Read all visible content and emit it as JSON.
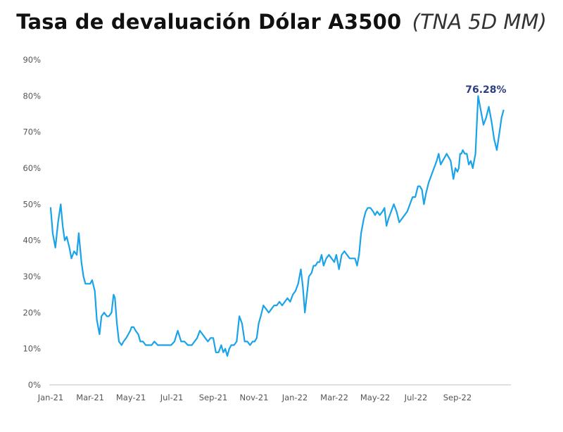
{
  "title": {
    "main": "Tasa de devaluación Dólar A3500",
    "sub": "(TNA 5D MM)"
  },
  "colors": {
    "line": "#1aa3e8",
    "annotation": "#2e3f7f",
    "axis": "#bfbfbf",
    "text": "#555555"
  },
  "chart_data": {
    "type": "line",
    "title": "Tasa de devaluación Dólar A3500 (TNA 5D MM)",
    "xlabel": "",
    "ylabel": "",
    "y_unit": "%",
    "ylim": [
      0,
      90
    ],
    "y_ticks": [
      0,
      10,
      20,
      30,
      40,
      50,
      60,
      70,
      80,
      90
    ],
    "y_tick_labels": [
      "0%",
      "10%",
      "20%",
      "30%",
      "40%",
      "50%",
      "60%",
      "70%",
      "80%",
      "90%"
    ],
    "xlim": [
      "2021-01-01",
      "2022-11-20"
    ],
    "x_ticks": [
      "2021-01-01",
      "2021-03-01",
      "2021-05-01",
      "2021-07-01",
      "2021-09-01",
      "2021-11-01",
      "2022-01-01",
      "2022-03-01",
      "2022-05-01",
      "2022-07-01",
      "2022-09-01"
    ],
    "x_tick_labels": [
      "Jan-21",
      "Mar-21",
      "May-21",
      "Jul-21",
      "Sep-21",
      "Nov-21",
      "Jan-22",
      "Mar-22",
      "May-22",
      "Jul-22",
      "Sep-22"
    ],
    "grid": false,
    "legend": "none",
    "series": [
      {
        "x": [
          "2021-01-01",
          "2021-01-04",
          "2021-01-08",
          "2021-01-12",
          "2021-01-16",
          "2021-01-19",
          "2021-01-22",
          "2021-01-25",
          "2021-01-29",
          "2021-02-01",
          "2021-02-05",
          "2021-02-09",
          "2021-02-12",
          "2021-02-16",
          "2021-02-19",
          "2021-02-22",
          "2021-02-25",
          "2021-03-01",
          "2021-03-04",
          "2021-03-08",
          "2021-03-11",
          "2021-03-15",
          "2021-03-18",
          "2021-03-22",
          "2021-03-26",
          "2021-03-29",
          "2021-04-02",
          "2021-04-05",
          "2021-04-07",
          "2021-04-10",
          "2021-04-13",
          "2021-04-17",
          "2021-04-20",
          "2021-04-24",
          "2021-04-27",
          "2021-04-30",
          "2021-05-02",
          "2021-05-05",
          "2021-05-08",
          "2021-05-12",
          "2021-05-15",
          "2021-05-19",
          "2021-05-23",
          "2021-05-27",
          "2021-06-01",
          "2021-06-05",
          "2021-06-10",
          "2021-06-15",
          "2021-06-20",
          "2021-06-25",
          "2021-06-30",
          "2021-07-05",
          "2021-07-10",
          "2021-07-15",
          "2021-07-20",
          "2021-07-25",
          "2021-07-28",
          "2021-07-31",
          "2021-08-04",
          "2021-08-08",
          "2021-08-12",
          "2021-08-16",
          "2021-08-20",
          "2021-08-24",
          "2021-08-28",
          "2021-09-01",
          "2021-09-05",
          "2021-09-09",
          "2021-09-13",
          "2021-09-16",
          "2021-09-19",
          "2021-09-22",
          "2021-09-25",
          "2021-09-28",
          "2021-10-02",
          "2021-10-06",
          "2021-10-10",
          "2021-10-14",
          "2021-10-18",
          "2021-10-22",
          "2021-10-26",
          "2021-10-30",
          "2021-11-02",
          "2021-11-05",
          "2021-11-08",
          "2021-11-11",
          "2021-11-15",
          "2021-11-19",
          "2021-11-23",
          "2021-11-27",
          "2021-12-01",
          "2021-12-05",
          "2021-12-09",
          "2021-12-13",
          "2021-12-17",
          "2021-12-21",
          "2021-12-25",
          "2021-12-29",
          "2022-01-02",
          "2022-01-06",
          "2022-01-10",
          "2022-01-13",
          "2022-01-16",
          "2022-01-19",
          "2022-01-22",
          "2022-01-26",
          "2022-01-29",
          "2022-02-01",
          "2022-02-04",
          "2022-02-07",
          "2022-02-10",
          "2022-02-13",
          "2022-02-17",
          "2022-02-21",
          "2022-02-25",
          "2022-03-01",
          "2022-03-04",
          "2022-03-08",
          "2022-03-12",
          "2022-03-16",
          "2022-03-20",
          "2022-03-24",
          "2022-03-28",
          "2022-04-01",
          "2022-04-04",
          "2022-04-07",
          "2022-04-10",
          "2022-04-14",
          "2022-04-17",
          "2022-04-20",
          "2022-04-24",
          "2022-04-28",
          "2022-05-01",
          "2022-05-04",
          "2022-05-08",
          "2022-05-12",
          "2022-05-15",
          "2022-05-18",
          "2022-05-21",
          "2022-05-25",
          "2022-05-29",
          "2022-06-02",
          "2022-06-06",
          "2022-06-10",
          "2022-06-14",
          "2022-06-18",
          "2022-06-22",
          "2022-06-26",
          "2022-06-30",
          "2022-07-04",
          "2022-07-07",
          "2022-07-10",
          "2022-07-13",
          "2022-07-16",
          "2022-07-20",
          "2022-07-24",
          "2022-07-28",
          "2022-08-01",
          "2022-08-04",
          "2022-08-07",
          "2022-08-10",
          "2022-08-13",
          "2022-08-16",
          "2022-08-19",
          "2022-08-22",
          "2022-08-26",
          "2022-08-29",
          "2022-09-01",
          "2022-09-03",
          "2022-09-05",
          "2022-09-07",
          "2022-09-09",
          "2022-09-12",
          "2022-09-15",
          "2022-09-18",
          "2022-09-21",
          "2022-09-24",
          "2022-09-28",
          "2022-10-02",
          "2022-10-06",
          "2022-10-10",
          "2022-10-14",
          "2022-10-18",
          "2022-10-22",
          "2022-10-26",
          "2022-10-30",
          "2022-11-03",
          "2022-11-06",
          "2022-11-09"
        ],
        "y": [
          49,
          42,
          38,
          45,
          50,
          44,
          40,
          41,
          38,
          35,
          37,
          36,
          42,
          34,
          30,
          28,
          28,
          28,
          29,
          26,
          18,
          14,
          19,
          20,
          19,
          19,
          20,
          25,
          24,
          17,
          12,
          11,
          12,
          13,
          14,
          15,
          16,
          16,
          15,
          14,
          12,
          12,
          11,
          11,
          11,
          12,
          11,
          11,
          11,
          11,
          11,
          12,
          15,
          12,
          12,
          11,
          11,
          11,
          12,
          13,
          15,
          14,
          13,
          12,
          13,
          13,
          9,
          9,
          11,
          9,
          10,
          8,
          10,
          11,
          11,
          12,
          19,
          17,
          12,
          12,
          11,
          12,
          12,
          13,
          17,
          19,
          22,
          21,
          20,
          21,
          22,
          22,
          23,
          22,
          23,
          24,
          23,
          25,
          26,
          28,
          32,
          27,
          20,
          25,
          30,
          31,
          33,
          33,
          34,
          34,
          36,
          33,
          35,
          36,
          35,
          34,
          36,
          32,
          36,
          37,
          36,
          35,
          35,
          35,
          33,
          36,
          42,
          46,
          48,
          49,
          49,
          48,
          47,
          48,
          47,
          48,
          49,
          44,
          46,
          48,
          50,
          48,
          45,
          46,
          47,
          48,
          50,
          52,
          52,
          55,
          55,
          54,
          50,
          53,
          56,
          58,
          60,
          62,
          64,
          61,
          62,
          63,
          64,
          63,
          62,
          57,
          60,
          59,
          60,
          64,
          64,
          65,
          64,
          64,
          61,
          62,
          60,
          64,
          80,
          76,
          72,
          74,
          77,
          73,
          68,
          65,
          70,
          74,
          76
        ]
      }
    ],
    "annotations": [
      {
        "text": "76.28%",
        "x": "2022-11-09",
        "y": 76.28
      }
    ]
  }
}
